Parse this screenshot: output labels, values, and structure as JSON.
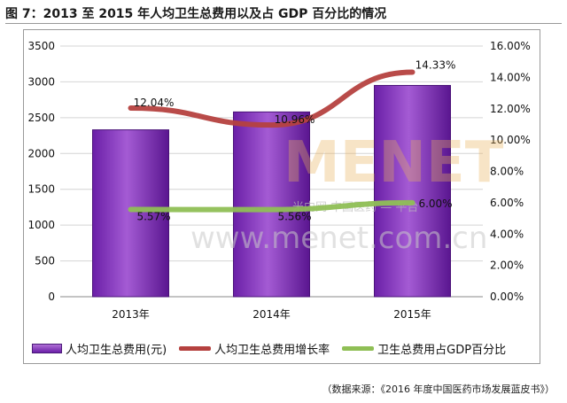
{
  "title": "图 7：2013 至 2015 年人均卫生总费用以及占 GDP 百分比的情况",
  "source_note": "（数据来源：《2016 年度中国医药市场发展蓝皮书》）",
  "watermark": {
    "logo": "MENET",
    "sub": "米内网 中国医药 — 平台",
    "url": "www.menet.com.cn"
  },
  "colors": {
    "bar": "#7b2fb5",
    "growth_line": "#b5413f",
    "gdp_line": "#8fbf55"
  },
  "chart_data": {
    "type": "bar",
    "categories": [
      "2013年",
      "2014年",
      "2015年"
    ],
    "y_left": {
      "ylim": [
        0,
        3500
      ],
      "ticks": [
        "0",
        "500",
        "1000",
        "1500",
        "2000",
        "2500",
        "3000",
        "3500"
      ]
    },
    "y_right": {
      "ylim": [
        0,
        16
      ],
      "ticks": [
        "0.00%",
        "2.00%",
        "4.00%",
        "6.00%",
        "8.00%",
        "10.00%",
        "12.00%",
        "14.00%",
        "16.00%"
      ]
    },
    "series": [
      {
        "name": "人均卫生总费用(元)",
        "type": "bar",
        "axis": "left",
        "values": [
          2330,
          2580,
          2950
        ]
      },
      {
        "name": "人均卫生总费用增长率",
        "type": "line",
        "axis": "right",
        "values": [
          12.04,
          10.96,
          14.33
        ],
        "labels": [
          "12.04%",
          "10.96%",
          "14.33%"
        ]
      },
      {
        "name": "卫生总费用占GDP百分比",
        "type": "line",
        "axis": "right",
        "values": [
          5.57,
          5.56,
          6.0
        ],
        "labels": [
          "5.57%",
          "5.56%",
          "6.00%"
        ]
      }
    ],
    "grid": true,
    "legend": "bottom"
  }
}
